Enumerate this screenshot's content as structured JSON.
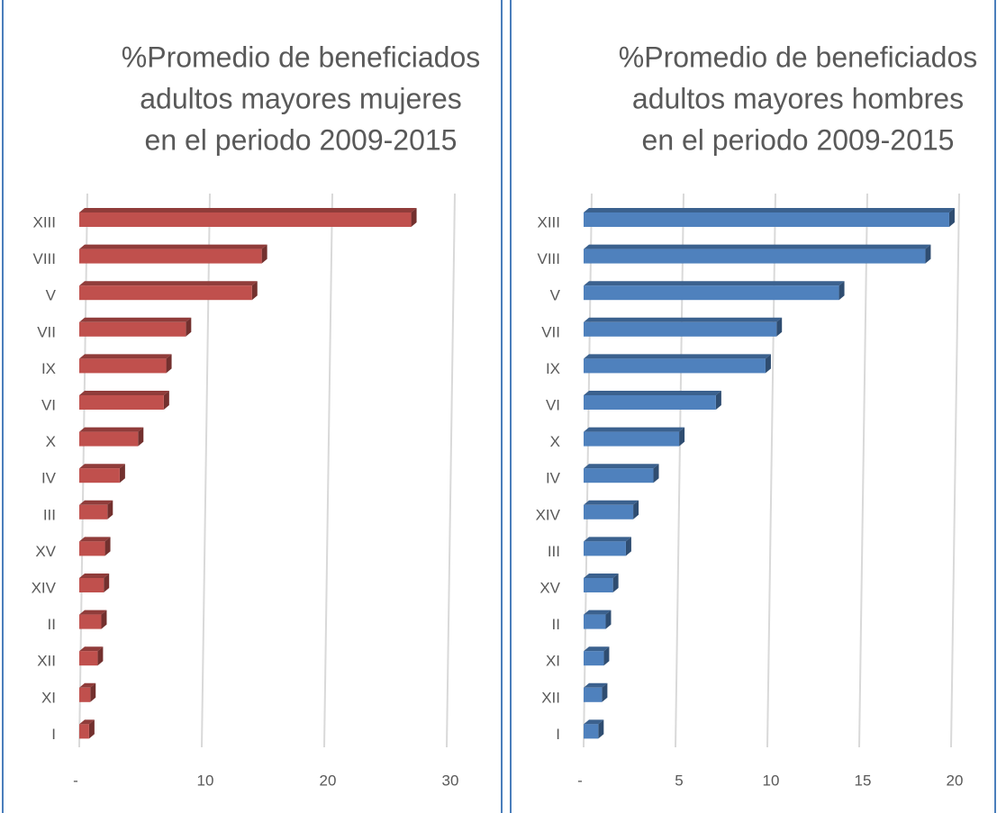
{
  "chart_data": [
    {
      "type": "bar",
      "orientation": "horizontal",
      "title": [
        "%Promedio de beneficiados",
        "adultos mayores mujeres",
        "en el periodo 2009-2015"
      ],
      "categories": [
        "XIII",
        "VIII",
        "V",
        "VII",
        "IX",
        "VI",
        "X",
        "IV",
        "III",
        "XV",
        "XIV",
        "II",
        "XII",
        "XI",
        "I"
      ],
      "values": [
        27.1,
        14.9,
        14.1,
        8.7,
        7.1,
        6.9,
        4.8,
        3.3,
        2.3,
        2.1,
        2.0,
        1.8,
        1.5,
        0.9,
        0.8
      ],
      "color": "#c0504d",
      "xlim": [
        0,
        30
      ],
      "xticks": [
        {
          "value": 0,
          "label": "-"
        },
        10,
        20,
        30
      ],
      "grid": true
    },
    {
      "type": "bar",
      "orientation": "horizontal",
      "title": [
        "%Promedio de beneficiados",
        "adultos mayores hombres",
        "en el periodo 2009-2015"
      ],
      "categories": [
        "XIII",
        "VIII",
        "V",
        "VII",
        "IX",
        "VI",
        "X",
        "IV",
        "XIV",
        "III",
        "XV",
        "II",
        "XI",
        "XII",
        "I"
      ],
      "values": [
        19.9,
        18.6,
        13.9,
        10.5,
        9.9,
        7.2,
        5.2,
        3.8,
        2.7,
        2.3,
        1.6,
        1.2,
        1.1,
        1.0,
        0.8
      ],
      "color": "#4f81bd",
      "xlim": [
        0,
        20
      ],
      "xticks": [
        {
          "value": 0,
          "label": "-"
        },
        5,
        10,
        15,
        20
      ],
      "grid": true
    }
  ]
}
